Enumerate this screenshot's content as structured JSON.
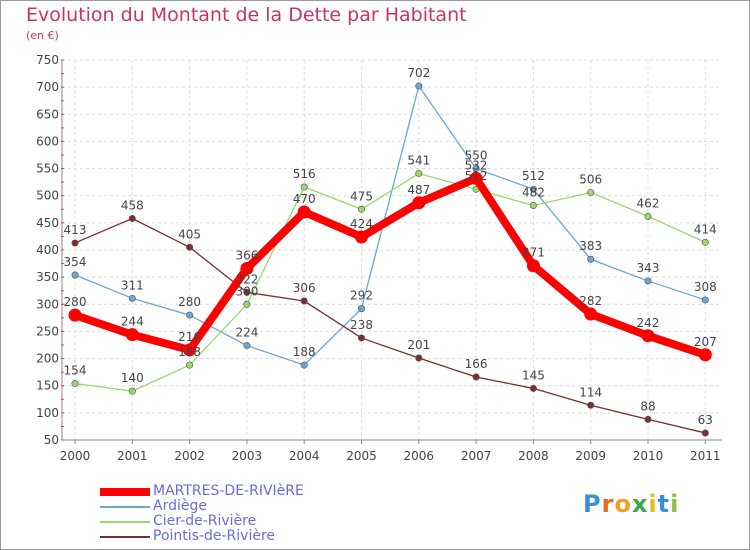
{
  "chart_data": {
    "type": "line",
    "title": "Evolution du Montant de la Dette par Habitant",
    "subtitle": "(en €)",
    "ylim": [
      50,
      750
    ],
    "yticks": [
      50,
      100,
      150,
      200,
      250,
      300,
      350,
      400,
      450,
      500,
      550,
      600,
      650,
      700,
      750
    ],
    "categories": [
      "2000",
      "2001",
      "2002",
      "2003",
      "2004",
      "2005",
      "2006",
      "2007",
      "2008",
      "2009",
      "2010",
      "2011"
    ],
    "grid": true,
    "legend_position": "bottom-left",
    "series": [
      {
        "name": "MARTRES-DE-RIVIèRE",
        "color": "#ff0000",
        "values": [
          280,
          244,
          216,
          366,
          470,
          424,
          487,
          532,
          371,
          282,
          242,
          207
        ]
      },
      {
        "name": "Ardiège",
        "color": "#6aa6d6",
        "values": [
          354,
          311,
          280,
          224,
          188,
          292,
          702,
          550,
          512,
          383,
          343,
          308
        ]
      },
      {
        "name": "Cier-de-Rivière",
        "color": "#98d870",
        "values": [
          154,
          140,
          188,
          300,
          516,
          475,
          541,
          512,
          482,
          506,
          462,
          414
        ]
      },
      {
        "name": "Pointis-de-Rivière",
        "color": "#7a2e2e",
        "values": [
          413,
          458,
          405,
          322,
          306,
          238,
          201,
          166,
          145,
          114,
          88,
          63
        ]
      }
    ]
  },
  "logo": {
    "letters": [
      "P",
      "r",
      "o",
      "x",
      "i",
      "t",
      "i"
    ],
    "colors": [
      "#3a8fd8",
      "#e86a1a",
      "#f0a020",
      "#3aa84a",
      "#e0c020",
      "#3a8fd8",
      "#8ac040"
    ]
  }
}
